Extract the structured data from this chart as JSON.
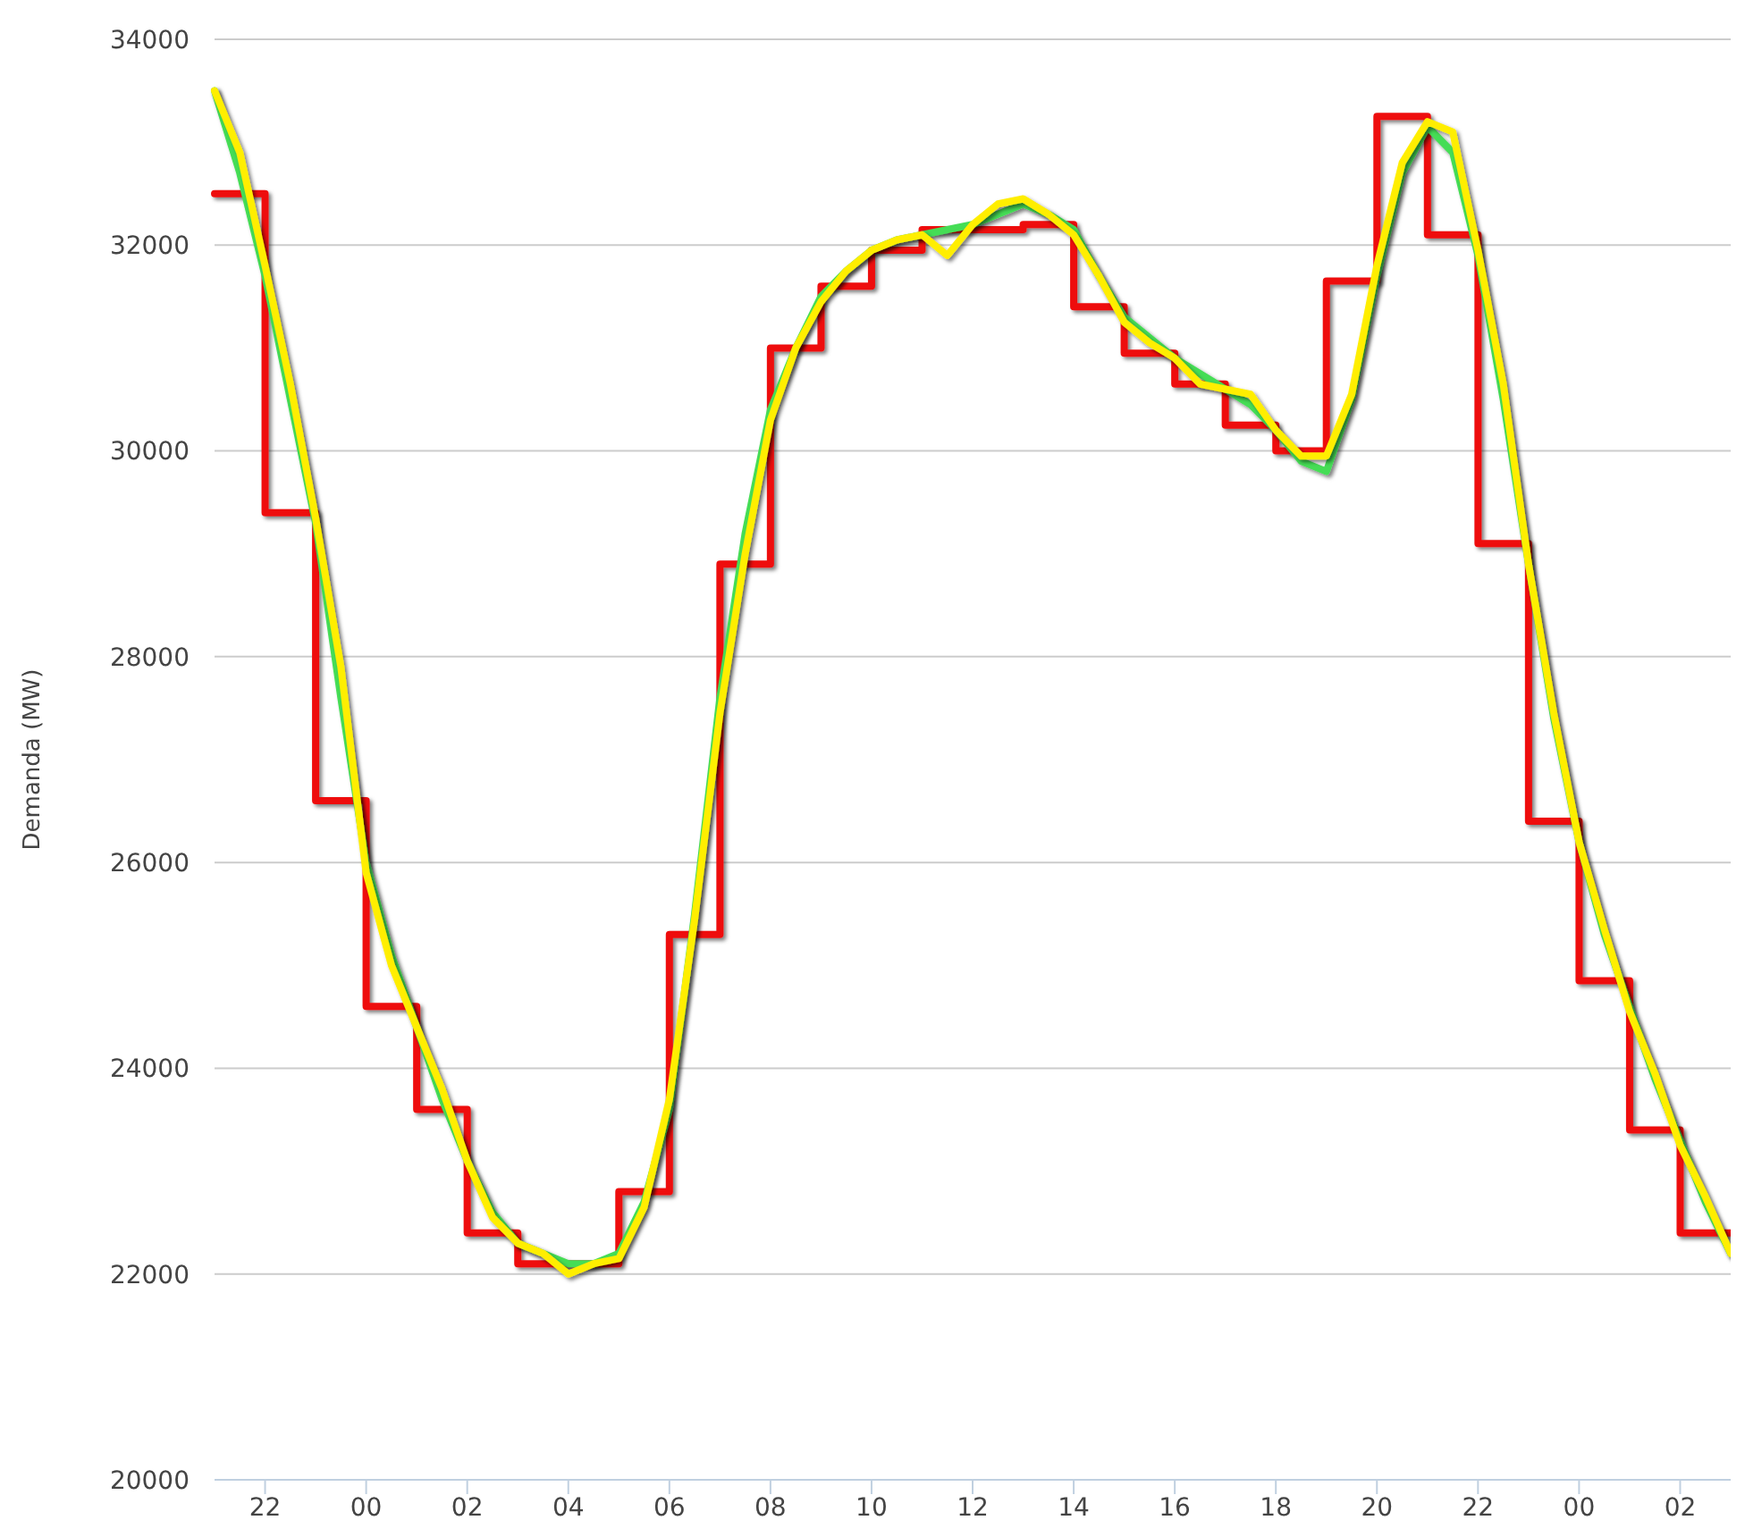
{
  "chart_data": {
    "type": "line",
    "ylabel": "Demanda (MW)",
    "ylim": [
      20000,
      34000
    ],
    "categories": [
      null,
      null,
      "22",
      null,
      null,
      null,
      "00",
      null,
      null,
      null,
      "02",
      null,
      null,
      null,
      "04",
      null,
      null,
      null,
      "06",
      null,
      null,
      null,
      "08",
      null,
      null,
      null,
      "10",
      null,
      null,
      null,
      "12",
      null,
      null,
      null,
      "14",
      null,
      null,
      null,
      "16",
      null,
      null,
      null,
      "18",
      null,
      null,
      null,
      "20",
      null,
      null,
      null,
      "22",
      null,
      null,
      null,
      "00",
      null,
      null,
      null,
      "02",
      null,
      null
    ],
    "yticks": [
      20000,
      22000,
      24000,
      26000,
      28000,
      30000,
      32000,
      34000
    ],
    "grid": "y",
    "marker": "none",
    "line_style": "solid",
    "series": [
      {
        "type": "step",
        "color": "#ee1111",
        "values": [
          32500,
          32500,
          29400,
          29400,
          26600,
          26600,
          24600,
          24600,
          23600,
          23600,
          22400,
          22400,
          22100,
          22100,
          22100,
          22100,
          22800,
          22800,
          25300,
          25300,
          28900,
          28900,
          31000,
          31000,
          31600,
          31600,
          31950,
          31950,
          32150,
          32150,
          32150,
          32150,
          32200,
          32200,
          31400,
          31400,
          30950,
          30950,
          30650,
          30650,
          30250,
          30250,
          30000,
          30000,
          31650,
          31650,
          33250,
          33250,
          32100,
          32100,
          29100,
          29100,
          26400,
          26400,
          24850,
          24850,
          23400,
          23400,
          22400,
          22400,
          22400
        ]
      },
      {
        "color": "#44dd55",
        "values": [
          33500,
          32700,
          31700,
          30500,
          29300,
          27600,
          26000,
          25100,
          24400,
          23700,
          23100,
          22600,
          22300,
          22200,
          22100,
          22100,
          22200,
          22700,
          23600,
          25500,
          27600,
          29200,
          30400,
          31000,
          31500,
          31750,
          31950,
          32050,
          32100,
          32150,
          32200,
          32300,
          32400,
          32300,
          32150,
          31700,
          31300,
          31100,
          30900,
          30750,
          30600,
          30450,
          30200,
          29900,
          29800,
          30500,
          31700,
          32700,
          33150,
          32900,
          31900,
          30500,
          28900,
          27400,
          26200,
          25300,
          24600,
          23900,
          23300,
          22700,
          22200
        ]
      },
      {
        "color": "#ffee00",
        "values": [
          33500,
          32900,
          31800,
          30650,
          29350,
          27900,
          25900,
          25000,
          24400,
          23800,
          23100,
          22550,
          22300,
          22200,
          22000,
          22100,
          22150,
          22650,
          23700,
          25450,
          27450,
          29000,
          30300,
          31000,
          31450,
          31750,
          31950,
          32050,
          32100,
          31900,
          32200,
          32400,
          32450,
          32300,
          32100,
          31700,
          31250,
          31050,
          30900,
          30650,
          30600,
          30550,
          30200,
          29950,
          29950,
          30550,
          31800,
          32800,
          33200,
          33100,
          31950,
          30650,
          28900,
          27450,
          26200,
          25350,
          24550,
          23950,
          23250,
          22750,
          22200
        ]
      }
    ]
  }
}
